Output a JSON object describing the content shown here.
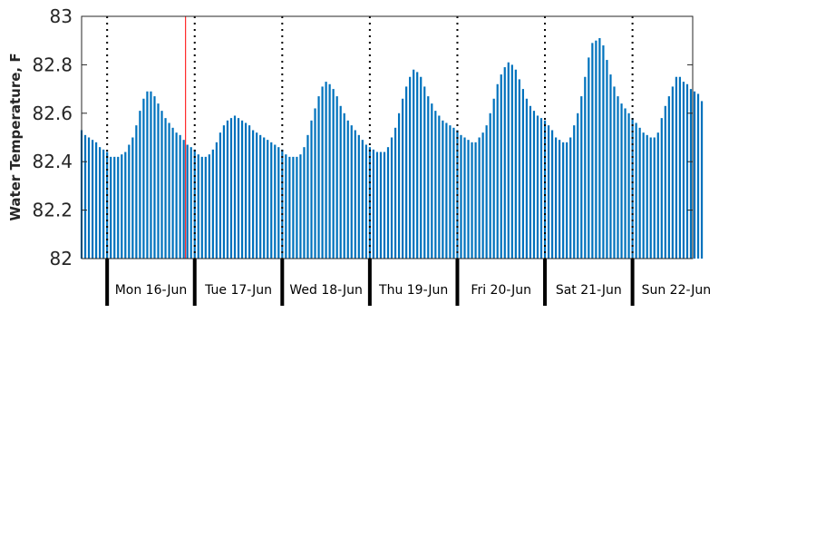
{
  "chart_data": {
    "type": "bar",
    "ylabel": "Water Temperature, F",
    "ylim": [
      82,
      83
    ],
    "yticks": [
      82,
      82.2,
      82.4,
      82.6,
      82.8,
      83
    ],
    "ytick_labels": [
      "82",
      "82.2",
      "82.4",
      "82.6",
      "82.8",
      "83"
    ],
    "x_unit": "hours",
    "xlim": [
      -7,
      160.5
    ],
    "bar_color": "#0072bd",
    "current_time_marker": {
      "x": 21.5,
      "color": "#ff0000"
    },
    "day_boundaries": [
      0,
      24,
      48,
      72,
      96,
      120,
      144
    ],
    "day_labels": [
      "Mon 16-Jun",
      "Tue 17-Jun",
      "Wed 18-Jun",
      "Thu 19-Jun",
      "Fri 20-Jun",
      "Sat 21-Jun",
      "Sun 22-Jun"
    ],
    "series": [
      {
        "x_start": -7,
        "x_step": 1,
        "values": [
          82.53,
          82.51,
          82.5,
          82.49,
          82.48,
          82.46,
          82.45,
          82.44,
          82.42,
          82.42,
          82.42,
          82.43,
          82.44,
          82.47,
          82.5,
          82.55,
          82.61,
          82.66,
          82.69,
          82.69,
          82.67,
          82.64,
          82.61,
          82.58,
          82.56,
          82.54,
          82.52,
          82.51,
          82.49,
          82.47,
          82.46,
          82.45,
          82.43,
          82.42,
          82.42,
          82.43,
          82.45,
          82.48,
          82.52,
          82.55,
          82.57,
          82.58,
          82.59,
          82.58,
          82.57,
          82.56,
          82.55,
          82.53,
          82.52,
          82.51,
          82.5,
          82.49,
          82.48,
          82.47,
          82.46,
          82.45,
          82.43,
          82.42,
          82.42,
          82.42,
          82.43,
          82.46,
          82.51,
          82.57,
          82.62,
          82.67,
          82.71,
          82.73,
          82.72,
          82.7,
          82.67,
          82.63,
          82.6,
          82.57,
          82.55,
          82.53,
          82.51,
          82.49,
          82.47,
          82.46,
          82.45,
          82.44,
          82.44,
          82.44,
          82.46,
          82.5,
          82.54,
          82.6,
          82.66,
          82.71,
          82.75,
          82.78,
          82.77,
          82.75,
          82.71,
          82.67,
          82.64,
          82.61,
          82.59,
          82.57,
          82.56,
          82.55,
          82.54,
          82.53,
          82.51,
          82.5,
          82.49,
          82.48,
          82.48,
          82.5,
          82.52,
          82.55,
          82.6,
          82.66,
          82.72,
          82.76,
          82.79,
          82.81,
          82.8,
          82.78,
          82.74,
          82.7,
          82.66,
          82.63,
          82.61,
          82.59,
          82.58,
          82.57,
          82.55,
          82.53,
          82.5,
          82.49,
          82.48,
          82.48,
          82.5,
          82.55,
          82.6,
          82.67,
          82.75,
          82.83,
          82.89,
          82.9,
          82.91,
          82.88,
          82.82,
          82.76,
          82.71,
          82.67,
          82.64,
          82.62,
          82.6,
          82.58,
          82.56,
          82.54,
          82.52,
          82.51,
          82.5,
          82.5,
          82.52,
          82.58,
          82.63,
          82.67,
          82.71,
          82.75,
          82.75,
          82.73,
          82.72,
          82.7,
          82.69,
          82.68,
          82.65
        ]
      }
    ]
  }
}
